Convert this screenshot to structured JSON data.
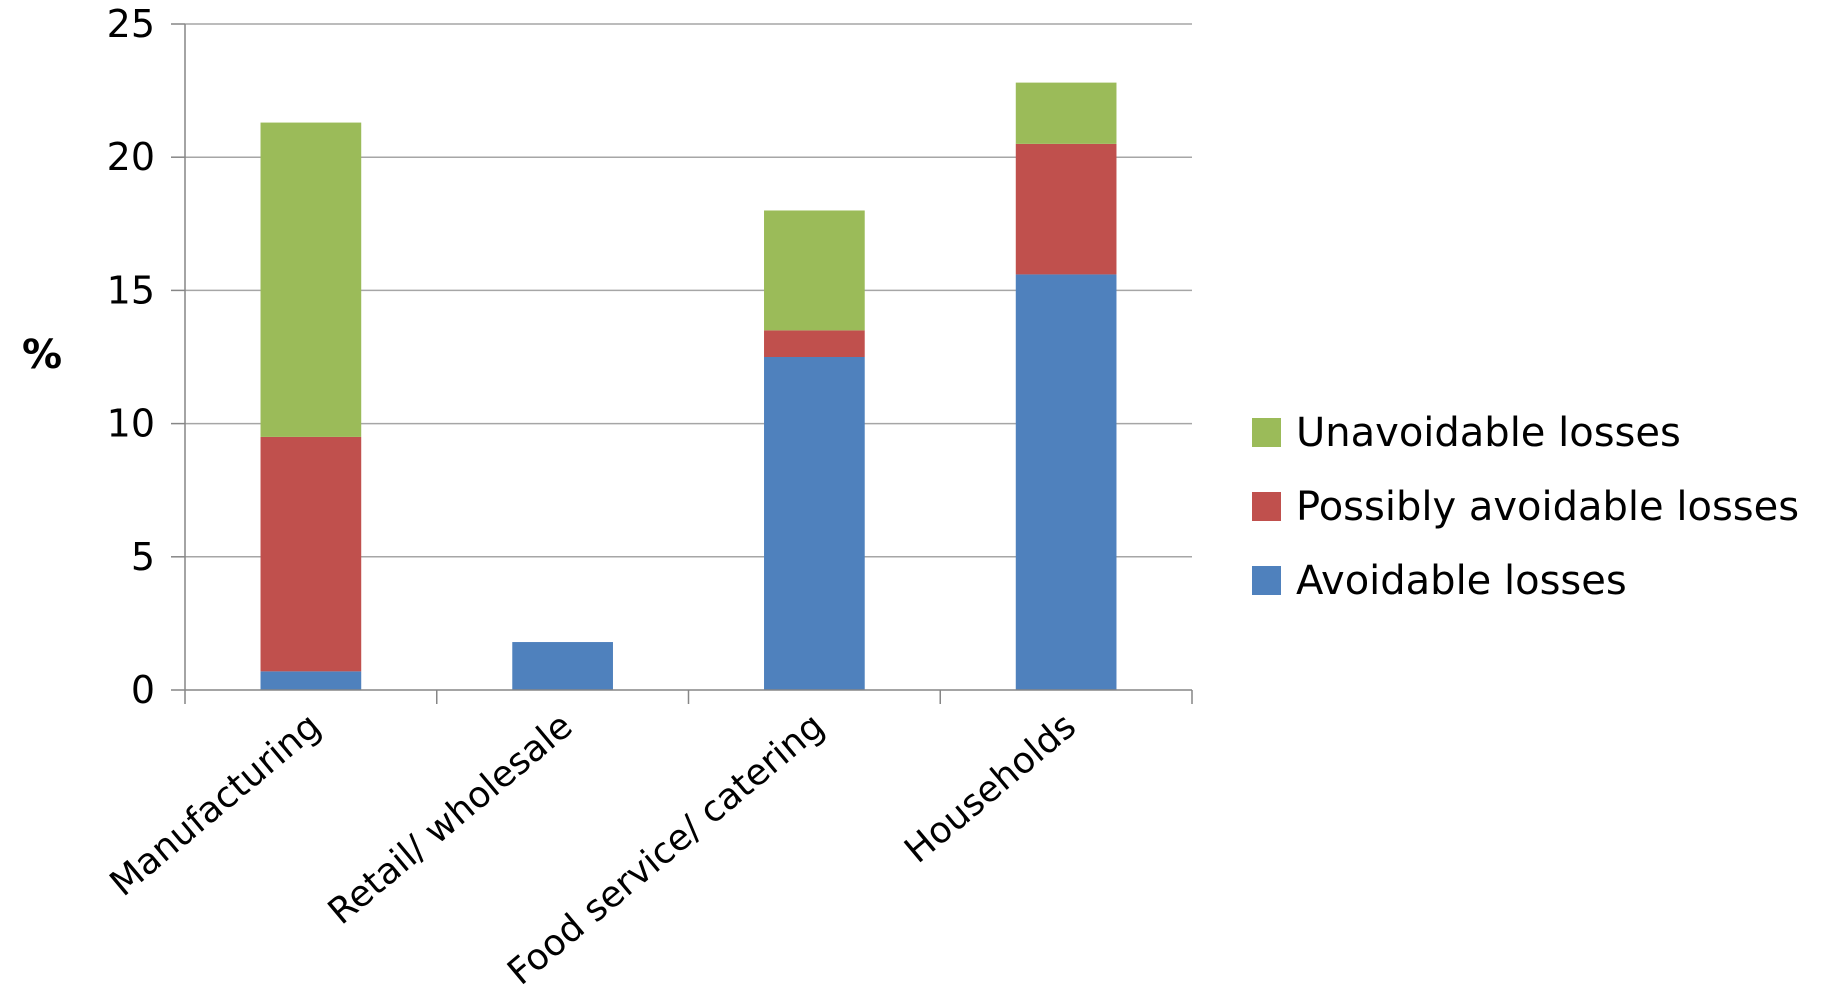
{
  "chart_data": {
    "type": "bar",
    "stacked": true,
    "title": "",
    "xlabel": "",
    "ylabel": "%",
    "ylim": [
      0,
      25
    ],
    "yticks": [
      "0",
      "5",
      "10",
      "15",
      "20",
      "25"
    ],
    "ytick_values": [
      0,
      5,
      10,
      15,
      20,
      25
    ],
    "grid": true,
    "legend_position": "right",
    "categories": [
      "Manufacturing",
      "Retail/ wholesale",
      "Food service/ catering",
      "Households"
    ],
    "series": [
      {
        "name": "Avoidable losses",
        "color": "#4F81BD",
        "values": [
          0.7,
          1.8,
          12.5,
          15.6
        ]
      },
      {
        "name": "Possibly avoidable losses",
        "color": "#C0504D",
        "values": [
          8.8,
          0,
          1.0,
          4.9
        ]
      },
      {
        "name": "Unavoidable losses",
        "color": "#9BBB59",
        "values": [
          11.8,
          0,
          4.5,
          2.3
        ]
      }
    ],
    "legend_order": [
      "Unavoidable losses",
      "Possibly avoidable losses",
      "Avoidable losses"
    ]
  }
}
